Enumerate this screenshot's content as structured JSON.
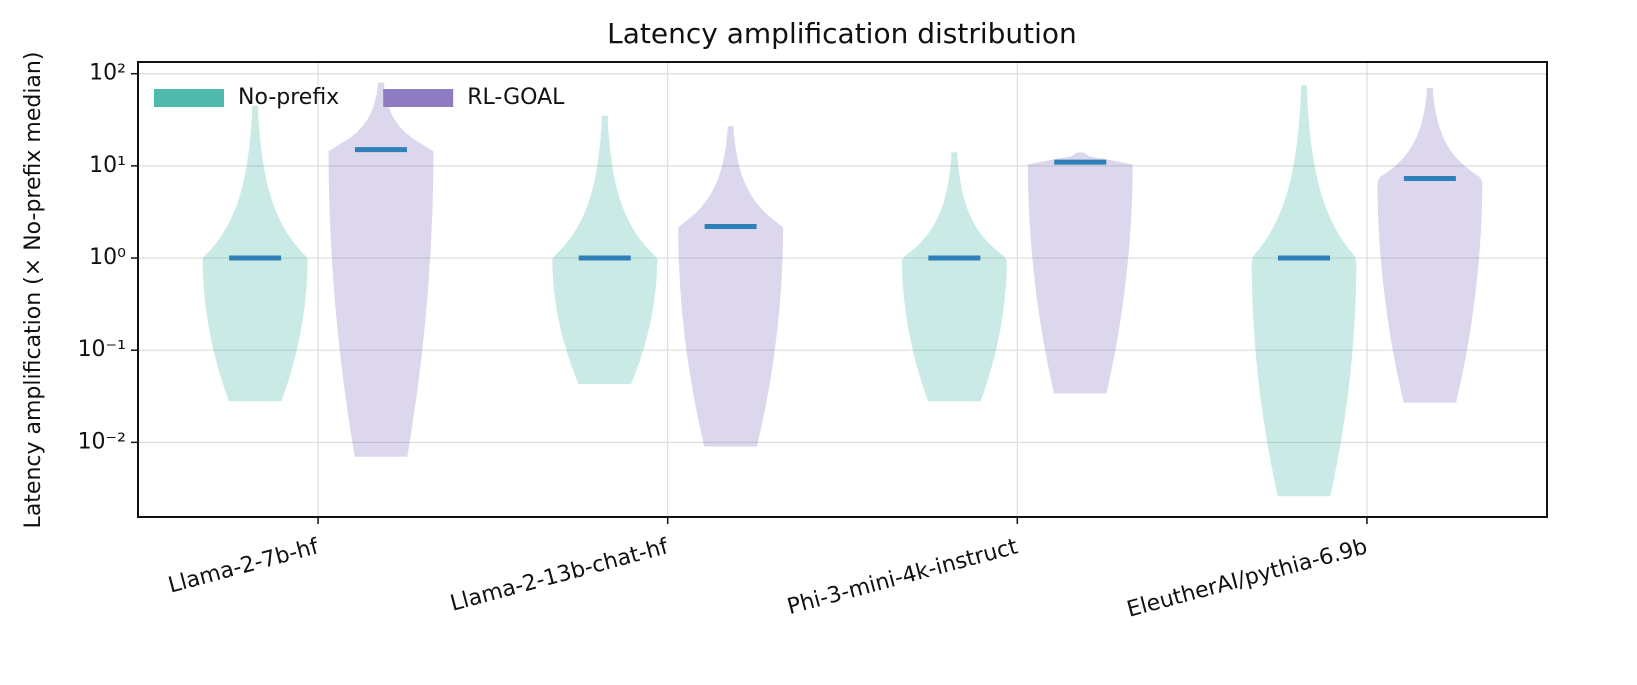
{
  "chart_data": {
    "type": "violin",
    "title": "Latency amplification distribution",
    "y_label": "Latency amplification (× No-prefix median)",
    "categories": [
      "Llama-2-7b-hf",
      "Llama-2-13b-chat-hf",
      "Phi-3-mini-4k-instruct",
      "EleutherAI/pythia-6.9b"
    ],
    "series": [
      {
        "name": "No-prefix",
        "color": "#4fb9ad",
        "min": [
          0.028,
          0.043,
          0.028,
          0.0026
        ],
        "median": [
          1,
          1,
          1,
          1
        ],
        "max": [
          45,
          35,
          14,
          75
        ]
      },
      {
        "name": "RL-GOAL",
        "color": "#8e7cc3",
        "min": [
          0.007,
          0.009,
          0.034,
          0.027
        ],
        "median": [
          15,
          2.2,
          11,
          7.3
        ],
        "max": [
          80,
          27,
          14,
          70
        ]
      }
    ],
    "median_color": "#2f7fb8",
    "log_y": true,
    "ylim": [
      0.00155,
      134
    ],
    "yticks": [
      {
        "value": 0.01,
        "label": "10⁻²"
      },
      {
        "value": 0.1,
        "label": "10⁻¹"
      },
      {
        "value": 1,
        "label": "10⁰"
      },
      {
        "value": 10,
        "label": "10¹"
      },
      {
        "value": 100,
        "label": "10²"
      }
    ],
    "grid": true,
    "legend": "upper-left"
  }
}
